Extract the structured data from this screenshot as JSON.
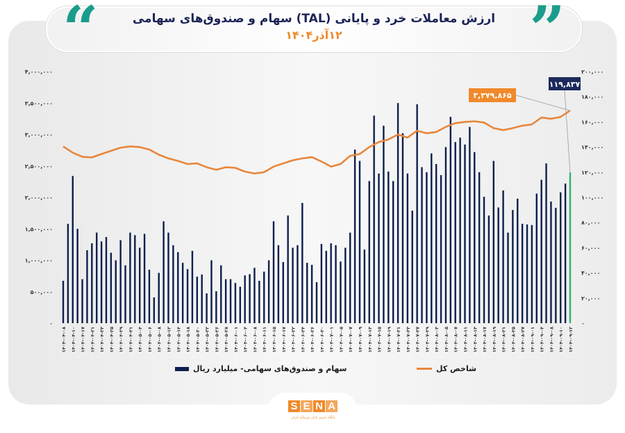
{
  "header": {
    "title": "ارزش معاملات خرد و پایانی (TAL) سهام و صندوق‌های سهامی",
    "subtitle": "۱۲آذر۱۴۰۴",
    "quote_icon_left": "open-quote-icon",
    "quote_icon_right": "close-quote-icon"
  },
  "colors": {
    "bars": "#0c1f4d",
    "last_bar": "#2db56b",
    "line": "#e8863a",
    "accent": "#1a9c8c",
    "title": "#1b2455",
    "subtitle": "#f0892a"
  },
  "chart_data": {
    "type": "bar+line",
    "title": "ارزش معاملات خرد و پایانی (TAL) سهام و صندوق‌های سهامی",
    "subtitle": "۱۲آذر۱۴۰۴",
    "left_axis": {
      "range": [
        0,
        4000000
      ],
      "series": "شاخص کل",
      "ticks": [
        "۰",
        "۵۰۰,۰۰۰",
        "۱,۰۰۰,۰۰۰",
        "۱,۵۰۰,۰۰۰",
        "۲,۰۰۰,۰۰۰",
        "۲,۵۰۰,۰۰۰",
        "۳,۰۰۰,۰۰۰",
        "۳,۵۰۰,۰۰۰",
        "۴,۰۰۰,۰۰۰"
      ]
    },
    "right_axis": {
      "range": [
        0,
        200000
      ],
      "series": "سهام و صندوق‌های سهامی- میلیارد ریال",
      "ticks": [
        "۰",
        "۲۰,۰۰۰",
        "۴۰,۰۰۰",
        "۶۰,۰۰۰",
        "۸۰,۰۰۰",
        "۱۰۰,۰۰۰",
        "۱۲۰,۰۰۰",
        "۱۴۰,۰۰۰",
        "۱۶۰,۰۰۰",
        "۱۸۰,۰۰۰",
        "۲۰۰,۰۰۰"
      ]
    },
    "x_tick_labels": [
      "۱۴۰۴-۰۴-۰۸",
      "۱۴۰۴-۰۴-۱۰",
      "۱۴۰۴-۰۴-۱۷",
      "۱۴۰۴-۰۴-۲۱",
      "۱۴۰۴-۰۴-۲۳",
      "۱۴۰۴-۰۴-۲۵",
      "۱۴۰۴-۰۴-۲۹",
      "۱۴۰۴-۰۴-۳۱",
      "۱۴۰۴-۰۵-۰۴",
      "۱۴۰۴-۰۵-۰۶",
      "۱۴۰۴-۰۵-۰۸",
      "۱۴۰۴-۰۵-۱۲",
      "۱۴۰۴-۰۵-۱۴",
      "۱۴۰۴-۰۵-۱۸",
      "۱۴۰۴-۰۵-۲۰",
      "۱۴۰۴-۰۵-۲۲",
      "۱۴۰۴-۰۵-۲۶",
      "۱۴۰۴-۰۵-۲۸",
      "۱۴۰۴-۰۶-۰۱",
      "۱۴۰۴-۰۶-۰۴",
      "۱۴۰۴-۰۶-۰۸",
      "۱۴۰۴-۰۶-۱۱",
      "۱۴۰۴-۰۶-۱۵",
      "۱۴۰۴-۰۶-۱۷",
      "۱۴۰۴-۰۶-۲۲",
      "۱۴۰۴-۰۶-۲۴",
      "۱۴۰۴-۰۶-۲۶",
      "۱۴۰۴-۰۶-۳۰",
      "۱۴۰۴-۰۷-۰۱",
      "۱۴۰۴-۰۷-۰۵",
      "۱۴۰۴-۰۷-۰۷",
      "۱۴۰۴-۰۷-۰۹",
      "۱۴۰۴-۰۷-۱۳",
      "۱۴۰۴-۰۷-۱۵",
      "۱۴۰۴-۰۷-۱۹",
      "۱۴۰۴-۰۷-۲۱",
      "۱۴۰۴-۰۷-۲۳",
      "۱۴۰۴-۰۷-۲۷",
      "۱۴۰۴-۰۷-۲۹",
      "۱۴۰۴-۰۸-۰۳",
      "۱۴۰۴-۰۸-۰۵",
      "۱۴۰۴-۰۸-۰۷",
      "۱۴۰۴-۰۸-۱۱",
      "۱۴۰۴-۰۸-۱۳",
      "۱۴۰۴-۰۸-۱۷",
      "۱۴۰۴-۰۸-۱۹",
      "۱۴۰۴-۰۸-۲۱",
      "۱۴۰۴-۰۸-۲۵",
      "۱۴۰۴-۰۸-۲۷",
      "۱۴۰۴-۰۹-۰۱",
      "۱۴۰۴-۰۹-۰۴",
      "۱۴۰۴-۰۹-۰۸",
      "۱۴۰۴-۰۹-۱۰",
      "۱۴۰۴-۰۹-۱۲"
    ],
    "series": [
      {
        "name": "سهام و صندوق‌های سهامی- میلیارد ریال",
        "type": "bar",
        "axis": "right",
        "note": "one bar per trading day; every other bar labeled",
        "values": [
          33700,
          79000,
          117000,
          75000,
          35000,
          58000,
          63500,
          72000,
          65000,
          68500,
          56000,
          50000,
          66000,
          46000,
          72000,
          70000,
          60000,
          71000,
          42500,
          20500,
          40000,
          81000,
          72000,
          62000,
          56500,
          48000,
          43000,
          57500,
          37000,
          38700,
          23700,
          50000,
          25400,
          46000,
          35000,
          35000,
          32000,
          29000,
          38000,
          39000,
          44000,
          33700,
          41000,
          50000,
          81000,
          62000,
          48600,
          85600,
          60000,
          62000,
          95600,
          48000,
          46400,
          32600,
          63000,
          57500,
          63500,
          62000,
          49000,
          60000,
          72000,
          138000,
          129000,
          58600,
          113000,
          165000,
          119000,
          157000,
          120600,
          113000,
          175000,
          151000,
          119000,
          89500,
          174000,
          124000,
          120000,
          135000,
          126500,
          117700,
          140000,
          164000,
          144000,
          147500,
          142000,
          156000,
          136000,
          120000,
          100500,
          85600,
          129000,
          92000,
          105500,
          72000,
          90000,
          99000,
          79000,
          78500,
          78000,
          103000,
          114000,
          127000,
          96700,
          91700,
          104000,
          111000,
          119837
        ]
      },
      {
        "name": "شاخص کل",
        "type": "line",
        "axis": "left",
        "note": "values at labeled dates",
        "values": [
          2810000,
          2710000,
          2645000,
          2635000,
          2690000,
          2740000,
          2790000,
          2810000,
          2800000,
          2760000,
          2680000,
          2620000,
          2580000,
          2530000,
          2540000,
          2480000,
          2440000,
          2480000,
          2470000,
          2410000,
          2380000,
          2400000,
          2490000,
          2540000,
          2590000,
          2620000,
          2640000,
          2570000,
          2490000,
          2530000,
          2660000,
          2690000,
          2800000,
          2880000,
          2920000,
          3000000,
          2950000,
          3060000,
          3020000,
          3040000,
          3120000,
          3180000,
          3200000,
          3210000,
          3190000,
          3100000,
          3070000,
          3100000,
          3140000,
          3160000,
          3270000,
          3250000,
          3280000,
          3379865
        ]
      }
    ],
    "annotations": {
      "last_index": "۳,۳۷۹,۸۶۵",
      "last_bar": "۱۱۹,۸۳۷"
    },
    "legend": {
      "placement": "bottom",
      "bar_label": "سهام و صندوق‌های سهامی- میلیارد ریال",
      "line_label": "شاخص کل"
    },
    "grid": false
  },
  "footer": {
    "logo_letters": [
      "S",
      "E",
      "N",
      "A"
    ],
    "logo_tagline": "پایگاه خبری بازار سرمایه ایران"
  }
}
